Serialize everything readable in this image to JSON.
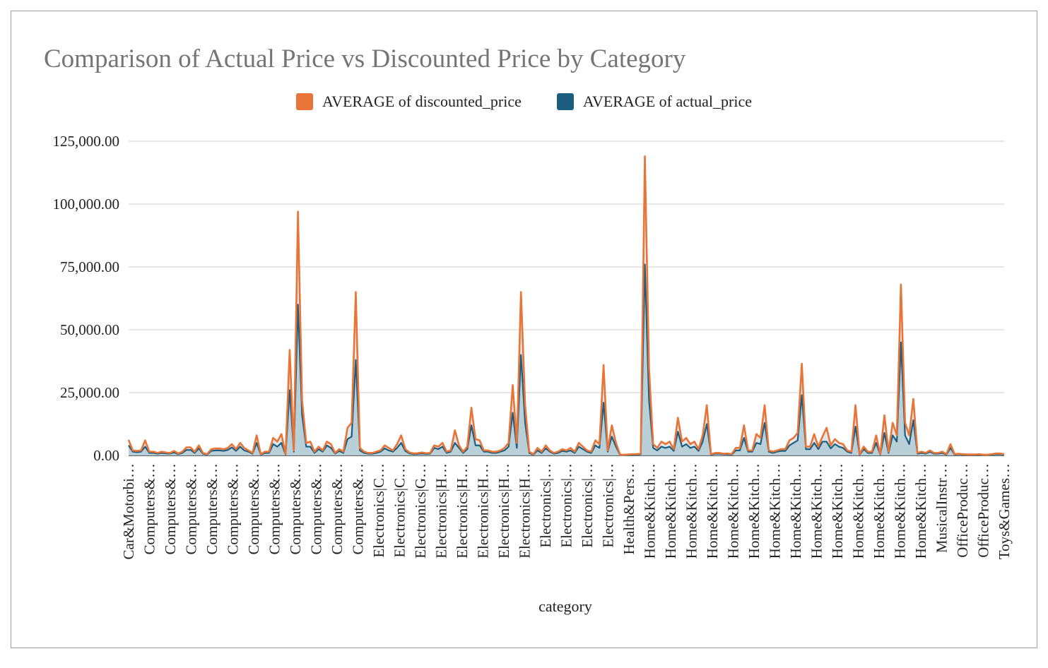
{
  "chart": {
    "title": "Comparison of Actual Price vs Discounted Price by Category",
    "xlabel": "category",
    "ylabel": ""
  },
  "colors": {
    "discounted": "#ea7336",
    "actual": "#1c5e7f",
    "actual_fill": "#b4cbd6",
    "grid": "#cfcfcf",
    "axis": "#333333"
  },
  "chart_data": {
    "type": "area",
    "x_tick_labels": [
      "Car&Motorbi…",
      "Computers&…",
      "Computers&…",
      "Computers&…",
      "Computers&…",
      "Computers&…",
      "Computers&…",
      "Computers&…",
      "Computers&…",
      "Computers&…",
      "Computers&…",
      "Computers&…",
      "Electronics|C…",
      "Electronics|C…",
      "Electronics|G…",
      "Electronics|H…",
      "Electronics|H…",
      "Electronics|H…",
      "Electronics|H…",
      "Electronics|H…",
      "Electronics|…",
      "Electronics|…",
      "Electronics|…",
      "Electronics|…",
      "Health&Pers…",
      "Home&Kitch…",
      "Home&Kitch…",
      "Home&Kitch…",
      "Home&Kitch…",
      "Home&Kitch…",
      "Home&Kitch…",
      "Home&Kitch…",
      "Home&Kitch…",
      "Home&Kitch…",
      "Home&Kitch…",
      "Home&Kitch…",
      "Home&Kitch…",
      "Home&Kitch…",
      "Home&Kitch…",
      "MusicalInstr…",
      "OfficeProduc…",
      "OfficeProduc…",
      "Toys&Games…"
    ],
    "y_tick_labels": [
      "0.00",
      "25,000.00",
      "50,000.00",
      "75,000.00",
      "100,000.00",
      "125,000.00"
    ],
    "ylim": [
      0,
      125000
    ],
    "grid": true,
    "legend_position": "top",
    "series": [
      {
        "name": "AVERAGE of discounted_price",
        "values": [
          6200,
          2000,
          1800,
          2000,
          6000,
          1500,
          1500,
          1000,
          1500,
          1200,
          1000,
          1800,
          800,
          1500,
          3200,
          3200,
          1500,
          4000,
          1000,
          500,
          2500,
          2800,
          2800,
          2500,
          3000,
          4500,
          2500,
          5000,
          3000,
          2000,
          1000,
          8000,
          500,
          1500,
          1500,
          7000,
          5500,
          8500,
          500,
          42000,
          2000,
          97000,
          22000,
          5000,
          5500,
          1500,
          3500,
          2000,
          5500,
          4500,
          1000,
          2500,
          1500,
          11000,
          13000,
          65000,
          3000,
          1500,
          1000,
          1000,
          1500,
          2000,
          4000,
          3000,
          2000,
          4500,
          8000,
          2500,
          1200,
          800,
          900,
          1200,
          900,
          1000,
          4000,
          3500,
          5000,
          1500,
          2000,
          10000,
          4000,
          1500,
          3500,
          19000,
          6500,
          6000,
          2000,
          2000,
          1500,
          1500,
          2000,
          3000,
          5000,
          28000,
          5000,
          65000,
          20000,
          1500,
          500,
          3000,
          1500,
          4000,
          2000,
          1000,
          1500,
          2500,
          2000,
          3000,
          1500,
          5000,
          3500,
          2000,
          1500,
          6000,
          4500,
          36000,
          2000,
          12000,
          5000,
          300,
          300,
          400,
          500,
          500,
          800,
          119000,
          35000,
          4500,
          3000,
          5500,
          4500,
          5500,
          2500,
          15000,
          5500,
          7000,
          4500,
          5500,
          2500,
          8000,
          20000,
          500,
          1000,
          1000,
          700,
          800,
          500,
          3000,
          3000,
          12000,
          2000,
          2000,
          8500,
          7000,
          20000,
          2000,
          1500,
          2000,
          2500,
          2500,
          6000,
          7000,
          9000,
          36500,
          3500,
          3500,
          8500,
          3500,
          7500,
          11000,
          4000,
          6500,
          5000,
          4500,
          2000,
          1500,
          20000,
          500,
          3500,
          1500,
          1500,
          8000,
          500,
          16000,
          1500,
          13000,
          8000,
          68000,
          13000,
          8000,
          22500,
          1000,
          1500,
          1000,
          2000,
          1000,
          1000,
          1500,
          500,
          4500,
          500,
          700,
          500,
          400,
          400,
          400,
          500,
          300,
          300,
          500,
          800,
          800,
          500
        ]
      },
      {
        "name": "AVERAGE of actual_price",
        "values": [
          4000,
          1500,
          1300,
          1500,
          3500,
          1000,
          1000,
          700,
          1000,
          800,
          700,
          1200,
          500,
          1000,
          2200,
          2200,
          1000,
          2800,
          700,
          300,
          1800,
          2000,
          2000,
          1800,
          2200,
          3200,
          1800,
          3500,
          2000,
          1500,
          700,
          5000,
          300,
          1000,
          1000,
          4500,
          3500,
          5000,
          300,
          26000,
          1500,
          60000,
          16000,
          3500,
          3500,
          1000,
          2500,
          1500,
          4000,
          3000,
          700,
          1800,
          1000,
          6500,
          7500,
          38000,
          2000,
          1000,
          700,
          700,
          1000,
          1500,
          2800,
          2000,
          1500,
          3000,
          5000,
          1800,
          800,
          500,
          600,
          800,
          600,
          700,
          3000,
          2500,
          3500,
          1000,
          1500,
          5000,
          3000,
          1000,
          2500,
          12000,
          4000,
          4000,
          1500,
          1500,
          1000,
          1000,
          1500,
          2000,
          3500,
          17000,
          3000,
          40000,
          13000,
          1000,
          300,
          2000,
          1000,
          2800,
          1500,
          700,
          1000,
          1800,
          1500,
          2000,
          1000,
          3500,
          2500,
          1500,
          1000,
          4000,
          3000,
          21000,
          1500,
          7500,
          3500,
          200,
          200,
          300,
          300,
          300,
          500,
          76000,
          22000,
          3000,
          2000,
          3500,
          3000,
          3500,
          1800,
          9500,
          3500,
          4500,
          3000,
          3500,
          1800,
          5500,
          12500,
          300,
          700,
          700,
          500,
          500,
          300,
          2000,
          2000,
          7000,
          1500,
          1500,
          5000,
          4500,
          13000,
          1500,
          1000,
          1500,
          1800,
          1800,
          4000,
          5000,
          6000,
          24000,
          2500,
          2500,
          5000,
          2500,
          5500,
          5500,
          2800,
          4500,
          3500,
          3000,
          1500,
          1000,
          11500,
          300,
          2500,
          1000,
          1000,
          5000,
          300,
          9000,
          1000,
          8000,
          5500,
          45000,
          8000,
          4500,
          14000,
          700,
          1000,
          700,
          1500,
          700,
          700,
          1000,
          300,
          3000,
          300,
          500,
          300,
          300,
          300,
          300,
          300,
          200,
          200,
          300,
          500,
          500,
          300
        ]
      }
    ]
  }
}
